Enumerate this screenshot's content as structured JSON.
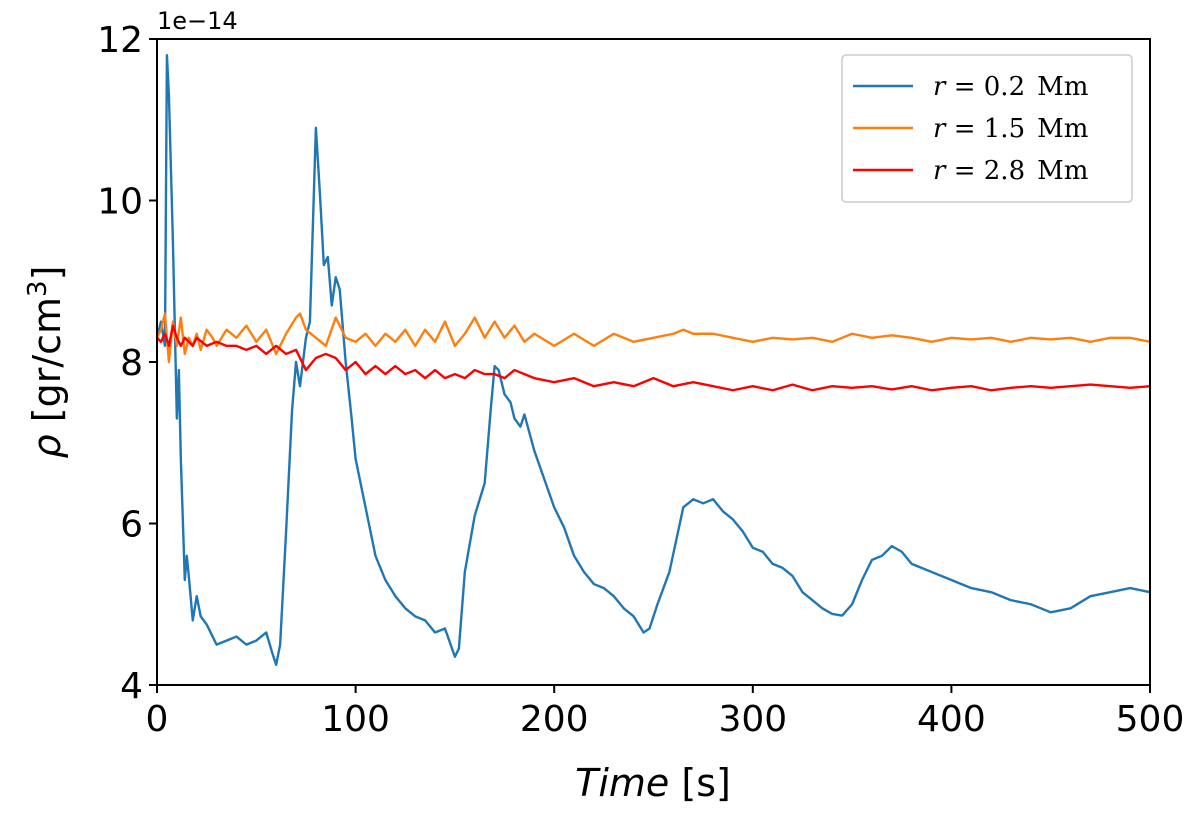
{
  "chart_data": {
    "type": "line",
    "xlabel": "Time [s]",
    "xlabel_italic_part": "Time",
    "xlabel_unit_part": " [s]",
    "ylabel": "ρ [gr/cm³]",
    "ylabel_symbol": "ρ",
    "ylabel_unit_part": " [gr/cm",
    "ylabel_superscript": "3",
    "ylabel_close": "]",
    "y_offset_text": "1e−14",
    "xlim": [
      0,
      500
    ],
    "ylim": [
      4,
      12
    ],
    "xticks": [
      0,
      100,
      200,
      300,
      400,
      500
    ],
    "xtick_labels": [
      "0",
      "100",
      "200",
      "300",
      "400",
      "500"
    ],
    "yticks": [
      4,
      6,
      8,
      10,
      12
    ],
    "ytick_labels": [
      "4",
      "6",
      "8",
      "10",
      "12"
    ],
    "grid": false,
    "legend_position": "top-right",
    "series": [
      {
        "name": "r = 0.2  Mm",
        "color": "#1f77b4",
        "x": [
          0,
          2,
          4,
          5,
          6,
          8,
          10,
          11,
          12,
          14,
          15,
          16,
          18,
          20,
          22,
          25,
          28,
          30,
          35,
          40,
          45,
          50,
          55,
          58,
          60,
          62,
          65,
          68,
          70,
          72,
          75,
          77,
          80,
          82,
          84,
          86,
          88,
          90,
          92,
          95,
          98,
          100,
          105,
          110,
          115,
          120,
          125,
          130,
          135,
          140,
          145,
          150,
          152,
          155,
          160,
          165,
          168,
          170,
          172,
          175,
          178,
          180,
          183,
          185,
          190,
          195,
          200,
          205,
          210,
          215,
          220,
          225,
          230,
          235,
          240,
          245,
          248,
          252,
          258,
          265,
          270,
          275,
          280,
          285,
          290,
          295,
          300,
          305,
          310,
          315,
          320,
          325,
          330,
          335,
          340,
          345,
          350,
          355,
          360,
          365,
          370,
          375,
          380,
          385,
          390,
          395,
          400,
          410,
          420,
          430,
          440,
          450,
          460,
          470,
          480,
          490,
          500
        ],
        "y": [
          8.3,
          8.5,
          8.2,
          11.8,
          11.3,
          9.5,
          7.3,
          7.9,
          6.8,
          5.3,
          5.6,
          5.35,
          4.8,
          5.1,
          4.85,
          4.75,
          4.6,
          4.5,
          4.55,
          4.6,
          4.5,
          4.55,
          4.65,
          4.4,
          4.25,
          4.5,
          5.9,
          7.4,
          8.0,
          7.7,
          8.3,
          8.5,
          10.9,
          10.1,
          9.2,
          9.3,
          8.7,
          9.05,
          8.9,
          8.0,
          7.3,
          6.8,
          6.2,
          5.6,
          5.3,
          5.1,
          4.95,
          4.85,
          4.8,
          4.65,
          4.7,
          4.35,
          4.45,
          5.4,
          6.1,
          6.5,
          7.4,
          7.95,
          7.9,
          7.6,
          7.5,
          7.3,
          7.2,
          7.35,
          6.9,
          6.55,
          6.2,
          5.95,
          5.6,
          5.4,
          5.25,
          5.2,
          5.1,
          4.95,
          4.85,
          4.65,
          4.7,
          5.0,
          5.4,
          6.2,
          6.3,
          6.25,
          6.3,
          6.15,
          6.05,
          5.9,
          5.7,
          5.65,
          5.5,
          5.45,
          5.35,
          5.15,
          5.05,
          4.95,
          4.88,
          4.86,
          5.0,
          5.3,
          5.55,
          5.6,
          5.72,
          5.65,
          5.5,
          5.45,
          5.4,
          5.35,
          5.3,
          5.2,
          5.15,
          5.05,
          5.0,
          4.9,
          4.95,
          5.1,
          5.15,
          5.2,
          5.15
        ]
      },
      {
        "name": "r = 1.5  Mm",
        "color": "#ff7f0e",
        "x": [
          0,
          2,
          4,
          6,
          8,
          10,
          12,
          14,
          16,
          18,
          20,
          22,
          25,
          28,
          30,
          35,
          40,
          45,
          50,
          55,
          60,
          65,
          70,
          72,
          75,
          80,
          85,
          90,
          95,
          100,
          105,
          110,
          115,
          120,
          125,
          130,
          135,
          140,
          145,
          150,
          155,
          160,
          165,
          170,
          175,
          180,
          185,
          190,
          200,
          210,
          220,
          230,
          240,
          250,
          260,
          265,
          270,
          280,
          290,
          300,
          310,
          320,
          330,
          340,
          350,
          360,
          370,
          380,
          390,
          400,
          410,
          420,
          430,
          440,
          450,
          460,
          470,
          480,
          490,
          500
        ],
        "y": [
          8.3,
          8.4,
          8.6,
          8.0,
          8.5,
          8.2,
          8.55,
          8.1,
          8.3,
          8.2,
          8.35,
          8.15,
          8.4,
          8.3,
          8.2,
          8.4,
          8.3,
          8.45,
          8.25,
          8.4,
          8.1,
          8.35,
          8.55,
          8.6,
          8.4,
          8.3,
          8.2,
          8.55,
          8.3,
          8.25,
          8.35,
          8.2,
          8.35,
          8.25,
          8.4,
          8.2,
          8.4,
          8.25,
          8.5,
          8.2,
          8.35,
          8.55,
          8.3,
          8.5,
          8.3,
          8.45,
          8.25,
          8.35,
          8.2,
          8.35,
          8.2,
          8.35,
          8.25,
          8.3,
          8.35,
          8.4,
          8.35,
          8.35,
          8.3,
          8.25,
          8.3,
          8.28,
          8.3,
          8.25,
          8.35,
          8.3,
          8.33,
          8.3,
          8.25,
          8.3,
          8.28,
          8.3,
          8.25,
          8.3,
          8.28,
          8.3,
          8.25,
          8.3,
          8.3,
          8.25
        ]
      },
      {
        "name": "r = 2.8  Mm",
        "color": "#ff0000",
        "x": [
          0,
          2,
          4,
          6,
          8,
          10,
          12,
          14,
          16,
          18,
          20,
          25,
          30,
          35,
          40,
          45,
          50,
          55,
          60,
          65,
          70,
          75,
          80,
          85,
          90,
          95,
          100,
          105,
          110,
          115,
          120,
          125,
          130,
          135,
          140,
          145,
          150,
          155,
          160,
          165,
          170,
          175,
          180,
          185,
          190,
          200,
          210,
          220,
          230,
          240,
          250,
          260,
          270,
          280,
          290,
          300,
          310,
          320,
          330,
          340,
          350,
          360,
          370,
          380,
          390,
          400,
          410,
          420,
          430,
          440,
          450,
          460,
          470,
          480,
          490,
          500
        ],
        "y": [
          8.3,
          8.25,
          8.35,
          8.2,
          8.45,
          8.3,
          8.2,
          8.3,
          8.25,
          8.2,
          8.3,
          8.2,
          8.25,
          8.2,
          8.2,
          8.15,
          8.2,
          8.1,
          8.2,
          8.1,
          8.15,
          7.9,
          8.05,
          8.1,
          8.05,
          7.9,
          8.0,
          7.85,
          7.95,
          7.85,
          7.95,
          7.85,
          7.9,
          7.8,
          7.9,
          7.8,
          7.85,
          7.8,
          7.9,
          7.85,
          7.85,
          7.8,
          7.9,
          7.85,
          7.8,
          7.75,
          7.8,
          7.7,
          7.75,
          7.7,
          7.8,
          7.7,
          7.75,
          7.7,
          7.65,
          7.7,
          7.65,
          7.72,
          7.65,
          7.7,
          7.68,
          7.7,
          7.66,
          7.7,
          7.65,
          7.68,
          7.7,
          7.65,
          7.68,
          7.7,
          7.68,
          7.7,
          7.72,
          7.7,
          7.68,
          7.7
        ]
      }
    ],
    "legend": [
      {
        "var": "r",
        "value": "0.2",
        "unit": "Mm"
      },
      {
        "var": "r",
        "value": "1.5",
        "unit": "Mm"
      },
      {
        "var": "r",
        "value": "2.8",
        "unit": "Mm"
      }
    ]
  }
}
